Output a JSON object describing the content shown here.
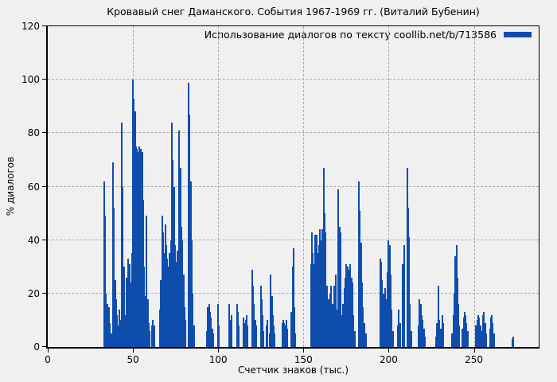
{
  "title": "Кровавый снег Даманского. События 1967-1969 гг. (Виталий Бубенин)",
  "legend": {
    "label": "Использование диалогов по тексту coollib.net/b/713586",
    "swatch": "legend-line"
  },
  "colors": {
    "bar": "#0f4dad",
    "background": "#f0f0f0",
    "grid": "#ababab",
    "frame": "#000000"
  },
  "axes": {
    "x": {
      "label": "Счетчик знаков (тыс.)",
      "min": 0,
      "max": 288,
      "ticks": [
        0,
        50,
        100,
        150,
        200,
        250
      ]
    },
    "y": {
      "label": "% диалогов",
      "min": 0,
      "max": 120,
      "ticks": [
        0,
        20,
        40,
        60,
        80,
        100,
        120
      ]
    }
  },
  "chart_data": {
    "type": "bar",
    "style": "impulses",
    "title": "Кровавый снег Даманского. События 1967-1969 гг. (Виталий Бубенин)",
    "series_name": "Использование диалогов по тексту coollib.net/b/713586",
    "xlabel": "Счетчик знаков (тыс.)",
    "ylabel": "% диалогов",
    "xlim": [
      0,
      288
    ],
    "ylim": [
      0,
      120
    ],
    "grid": true,
    "legend_position": "top-right",
    "points": [
      [
        33,
        62
      ],
      [
        33.6,
        49
      ],
      [
        34.2,
        20
      ],
      [
        34.8,
        16
      ],
      [
        35.4,
        12
      ],
      [
        36,
        15
      ],
      [
        36.6,
        9
      ],
      [
        37.2,
        5
      ],
      [
        38.3,
        69
      ],
      [
        38.9,
        52
      ],
      [
        39.5,
        25
      ],
      [
        40.1,
        18
      ],
      [
        40.7,
        12
      ],
      [
        41.3,
        8
      ],
      [
        41.9,
        14
      ],
      [
        42.5,
        10
      ],
      [
        43.4,
        84
      ],
      [
        44,
        60
      ],
      [
        44.6,
        30
      ],
      [
        45.2,
        12
      ],
      [
        45.8,
        10
      ],
      [
        46.4,
        26
      ],
      [
        47,
        33
      ],
      [
        47.6,
        25
      ],
      [
        48.2,
        31
      ],
      [
        48.8,
        24
      ],
      [
        49.4,
        35
      ],
      [
        50,
        100
      ],
      [
        50.6,
        93
      ],
      [
        51.2,
        88
      ],
      [
        51.8,
        75
      ],
      [
        52.4,
        74
      ],
      [
        53,
        73
      ],
      [
        53.6,
        75
      ],
      [
        54.2,
        73
      ],
      [
        54.8,
        74
      ],
      [
        55.4,
        73
      ],
      [
        56,
        55
      ],
      [
        56.6,
        30
      ],
      [
        57.2,
        19
      ],
      [
        58.1,
        49
      ],
      [
        58.7,
        18
      ],
      [
        59.3,
        9
      ],
      [
        59.9,
        6
      ],
      [
        61.2,
        8
      ],
      [
        61.8,
        10
      ],
      [
        62.4,
        8
      ],
      [
        65.9,
        14
      ],
      [
        66.5,
        25
      ],
      [
        67.1,
        49
      ],
      [
        67.7,
        43
      ],
      [
        68.3,
        35
      ],
      [
        68.9,
        46
      ],
      [
        69.5,
        38
      ],
      [
        70.1,
        33
      ],
      [
        70.7,
        30
      ],
      [
        71.3,
        35
      ],
      [
        71.9,
        28
      ],
      [
        72.3,
        40
      ],
      [
        72.9,
        84
      ],
      [
        73.5,
        70
      ],
      [
        74.1,
        60
      ],
      [
        74.7,
        38
      ],
      [
        75.3,
        32
      ],
      [
        75.9,
        36
      ],
      [
        76.5,
        30
      ],
      [
        77.2,
        81
      ],
      [
        77.8,
        67
      ],
      [
        78.4,
        45
      ],
      [
        79,
        40
      ],
      [
        79.6,
        27
      ],
      [
        80.2,
        15
      ],
      [
        80.8,
        10
      ],
      [
        82.7,
        99
      ],
      [
        83.3,
        87
      ],
      [
        83.9,
        62
      ],
      [
        84.5,
        40
      ],
      [
        85.1,
        20
      ],
      [
        85.7,
        8
      ],
      [
        93.4,
        6
      ],
      [
        94,
        15
      ],
      [
        94.6,
        16
      ],
      [
        95.2,
        13
      ],
      [
        95.8,
        11
      ],
      [
        96.4,
        7
      ],
      [
        97,
        5
      ],
      [
        99.8,
        16
      ],
      [
        100.4,
        8
      ],
      [
        106.3,
        16
      ],
      [
        106.9,
        10
      ],
      [
        107.6,
        12
      ],
      [
        110.9,
        16
      ],
      [
        111.5,
        13
      ],
      [
        112.1,
        8
      ],
      [
        114.8,
        11
      ],
      [
        115.4,
        9
      ],
      [
        116,
        10
      ],
      [
        116.6,
        12
      ],
      [
        117.2,
        8
      ],
      [
        119.9,
        29
      ],
      [
        120.5,
        23
      ],
      [
        121.1,
        16
      ],
      [
        121.7,
        10
      ],
      [
        122.3,
        8
      ],
      [
        124.9,
        23
      ],
      [
        125.5,
        18
      ],
      [
        126.1,
        12
      ],
      [
        126.7,
        6
      ],
      [
        128.4,
        8
      ],
      [
        129,
        10
      ],
      [
        130.2,
        5
      ],
      [
        130.8,
        27
      ],
      [
        131.4,
        19
      ],
      [
        132,
        12
      ],
      [
        132.6,
        8
      ],
      [
        133.2,
        5
      ],
      [
        137.5,
        9
      ],
      [
        138.1,
        10
      ],
      [
        138.7,
        9
      ],
      [
        139.3,
        8
      ],
      [
        139.9,
        10
      ],
      [
        140.5,
        7
      ],
      [
        143,
        13
      ],
      [
        143.6,
        30
      ],
      [
        144.2,
        37
      ],
      [
        144.8,
        15
      ],
      [
        145.4,
        5
      ],
      [
        154.3,
        31
      ],
      [
        154.9,
        43
      ],
      [
        155.5,
        35
      ],
      [
        156.1,
        31
      ],
      [
        156.7,
        42
      ],
      [
        157.3,
        36
      ],
      [
        157.9,
        42
      ],
      [
        158.5,
        35
      ],
      [
        159.1,
        38
      ],
      [
        159.7,
        44
      ],
      [
        160.3,
        40
      ],
      [
        160.9,
        44
      ],
      [
        161.9,
        67
      ],
      [
        162.5,
        50
      ],
      [
        163.1,
        43
      ],
      [
        164,
        23
      ],
      [
        164.6,
        18
      ],
      [
        165.2,
        14
      ],
      [
        165.8,
        20
      ],
      [
        166.4,
        23
      ],
      [
        167,
        16
      ],
      [
        167.6,
        14
      ],
      [
        168.2,
        23
      ],
      [
        168.8,
        27
      ],
      [
        169.4,
        14
      ],
      [
        170.6,
        59
      ],
      [
        171.2,
        45
      ],
      [
        171.8,
        43
      ],
      [
        172.8,
        12
      ],
      [
        173.4,
        16
      ],
      [
        174,
        22
      ],
      [
        174.6,
        26
      ],
      [
        175.2,
        31
      ],
      [
        175.8,
        30
      ],
      [
        176.4,
        28
      ],
      [
        177,
        29
      ],
      [
        177.6,
        31
      ],
      [
        178.2,
        26
      ],
      [
        178.8,
        24
      ],
      [
        179.4,
        12
      ],
      [
        180,
        6
      ],
      [
        182.4,
        62
      ],
      [
        183,
        51
      ],
      [
        183.8,
        39
      ],
      [
        184.4,
        24
      ],
      [
        185,
        15
      ],
      [
        185.8,
        9
      ],
      [
        186.6,
        5
      ],
      [
        195,
        33
      ],
      [
        195.6,
        32
      ],
      [
        196.2,
        25
      ],
      [
        196.8,
        20
      ],
      [
        197.4,
        16
      ],
      [
        198,
        22
      ],
      [
        198.6,
        18
      ],
      [
        199.4,
        28
      ],
      [
        200,
        40
      ],
      [
        200.6,
        38
      ],
      [
        201.2,
        27
      ],
      [
        201.8,
        14
      ],
      [
        202.4,
        6
      ],
      [
        205.4,
        8
      ],
      [
        206,
        14
      ],
      [
        206.6,
        9
      ],
      [
        208,
        31
      ],
      [
        208.6,
        10
      ],
      [
        209.3,
        38
      ],
      [
        210.8,
        67
      ],
      [
        211.4,
        52
      ],
      [
        212,
        41
      ],
      [
        212.6,
        16
      ],
      [
        213.2,
        6
      ],
      [
        217.6,
        8
      ],
      [
        218.2,
        18
      ],
      [
        218.8,
        16
      ],
      [
        219.4,
        12
      ],
      [
        220,
        10
      ],
      [
        220.6,
        7
      ],
      [
        221.2,
        4
      ],
      [
        227.6,
        4
      ],
      [
        228.4,
        9
      ],
      [
        229,
        23
      ],
      [
        229.6,
        10
      ],
      [
        230.4,
        7
      ],
      [
        231.6,
        12
      ],
      [
        232.2,
        9
      ],
      [
        237.3,
        5
      ],
      [
        237.9,
        12
      ],
      [
        238.5,
        20
      ],
      [
        239.1,
        34
      ],
      [
        239.7,
        38
      ],
      [
        240.3,
        26
      ],
      [
        240.9,
        16
      ],
      [
        241.5,
        8
      ],
      [
        243.3,
        7
      ],
      [
        243.9,
        11
      ],
      [
        244.5,
        13
      ],
      [
        245.1,
        12
      ],
      [
        245.7,
        9
      ],
      [
        246.3,
        6
      ],
      [
        251.3,
        8
      ],
      [
        251.9,
        10
      ],
      [
        252.5,
        12
      ],
      [
        253.1,
        11
      ],
      [
        253.7,
        8
      ],
      [
        254.5,
        6
      ],
      [
        255.3,
        12
      ],
      [
        255.9,
        13
      ],
      [
        256.5,
        9
      ],
      [
        257.1,
        5
      ],
      [
        259.3,
        7
      ],
      [
        259.9,
        11
      ],
      [
        260.5,
        12
      ],
      [
        261.1,
        9
      ],
      [
        261.7,
        5
      ],
      [
        272.6,
        3
      ],
      [
        273.2,
        4
      ]
    ]
  }
}
